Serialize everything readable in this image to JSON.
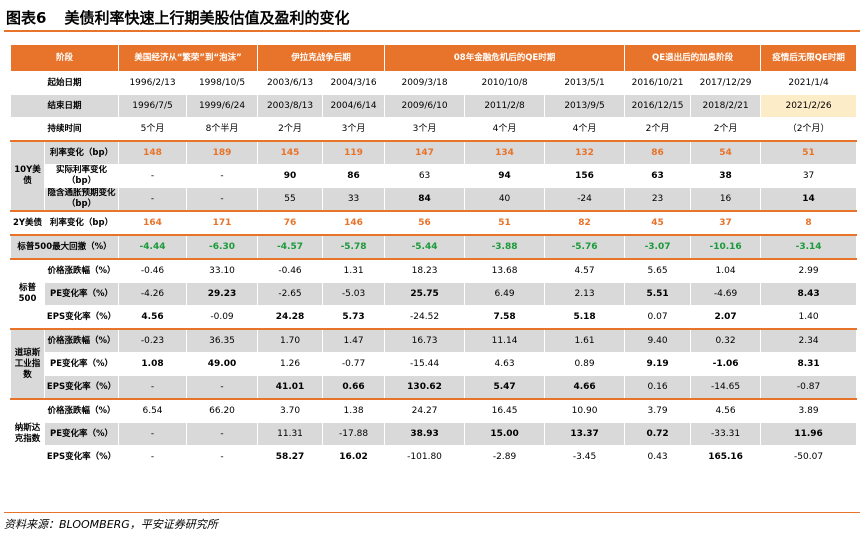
{
  "title": {
    "label": "图表6",
    "text": "美债利率快速上行期美股估值及盈利的变化"
  },
  "header": {
    "stage": "阶段",
    "groups": [
      "美国经济从“繁荣”到“泡沫”",
      "伊拉克战争后期",
      "08年金融危机后的QE时期",
      "QE退出后的加息阶段",
      "疫情后无限QE时期"
    ]
  },
  "rows": {
    "start": {
      "label": "起始日期",
      "values": [
        "1996/2/13",
        "1998/10/5",
        "2003/6/13",
        "2004/3/16",
        "2009/3/18",
        "2010/10/8",
        "2013/5/1",
        "2016/10/21",
        "2017/12/29",
        "2021/1/4"
      ]
    },
    "end": {
      "label": "结束日期",
      "values": [
        "1996/7/5",
        "1999/6/24",
        "2003/8/13",
        "2004/6/14",
        "2009/6/10",
        "2011/2/8",
        "2013/9/5",
        "2016/12/15",
        "2018/2/21",
        "2021/2/26"
      ]
    },
    "duration": {
      "label": "持续时间",
      "values": [
        "5个月",
        "8个半月",
        "2个月",
        "3个月",
        "3个月",
        "4个月",
        "4个月",
        "2个月",
        "2个月",
        "（2个月）"
      ]
    }
  },
  "us10y": {
    "group": "10Y美债",
    "rate": {
      "label": "利率变化（bp）",
      "values": [
        "148",
        "189",
        "145",
        "119",
        "147",
        "134",
        "132",
        "86",
        "54",
        "51"
      ]
    },
    "real": {
      "label": "实际利率变化（bp）",
      "values": [
        "-",
        "-",
        "90",
        "86",
        "63",
        "94",
        "156",
        "63",
        "38",
        "37"
      ]
    },
    "infl": {
      "label": "隐含通胀预期变化（bp）",
      "values": [
        "-",
        "-",
        "55",
        "33",
        "84",
        "40",
        "-24",
        "23",
        "16",
        "14"
      ]
    }
  },
  "us2y": {
    "group": "2Y美债",
    "label": "利率变化（bp）",
    "values": [
      "164",
      "171",
      "76",
      "146",
      "56",
      "51",
      "82",
      "45",
      "37",
      "8"
    ]
  },
  "spx_dd": {
    "label": "标普500最大回撤（%）",
    "values": [
      "-4.44",
      "-6.30",
      "-4.57",
      "-5.78",
      "-5.44",
      "-3.88",
      "-5.76",
      "-3.07",
      "-10.16",
      "-3.14"
    ]
  },
  "spx": {
    "group": "标普500",
    "price": {
      "label": "价格涨跌幅（%）",
      "values": [
        "-0.46",
        "33.10",
        "-0.46",
        "1.31",
        "18.23",
        "13.68",
        "4.57",
        "5.65",
        "1.04",
        "2.99"
      ]
    },
    "pe": {
      "label": "PE变化率（%）",
      "values": [
        "-4.26",
        "29.23",
        "-2.65",
        "-5.03",
        "25.75",
        "6.49",
        "2.13",
        "5.51",
        "-4.69",
        "8.43"
      ]
    },
    "eps": {
      "label": "EPS变化率（%）",
      "values": [
        "4.56",
        "-0.09",
        "24.28",
        "5.73",
        "-24.52",
        "7.58",
        "5.18",
        "0.07",
        "2.07",
        "1.40"
      ]
    }
  },
  "dji": {
    "group": "道琼斯工业指数",
    "price": {
      "label": "价格涨跌幅（%）",
      "values": [
        "-0.23",
        "36.35",
        "1.70",
        "1.47",
        "16.73",
        "11.14",
        "1.61",
        "9.40",
        "0.32",
        "2.34"
      ]
    },
    "pe": {
      "label": "PE变化率（%）",
      "values": [
        "1.08",
        "49.00",
        "1.26",
        "-0.77",
        "-15.44",
        "4.63",
        "0.89",
        "9.19",
        "-1.06",
        "8.31"
      ]
    },
    "eps": {
      "label": "EPS变化率（%）",
      "values": [
        "-",
        "-",
        "41.01",
        "0.66",
        "130.62",
        "5.47",
        "4.66",
        "0.16",
        "-14.65",
        "-0.87"
      ]
    }
  },
  "ndx": {
    "group": "纳斯达克指数",
    "price": {
      "label": "价格涨跌幅（%）",
      "values": [
        "6.54",
        "66.20",
        "3.70",
        "1.38",
        "24.27",
        "16.45",
        "10.90",
        "3.79",
        "4.56",
        "3.89"
      ]
    },
    "pe": {
      "label": "PE变化率（%）",
      "values": [
        "-",
        "-",
        "11.31",
        "-17.88",
        "38.93",
        "15.00",
        "13.37",
        "0.72",
        "-33.31",
        "11.96"
      ]
    },
    "eps": {
      "label": "EPS变化率（%）",
      "values": [
        "-",
        "-",
        "58.27",
        "16.02",
        "-101.80",
        "-2.89",
        "-3.45",
        "0.43",
        "165.16",
        "-50.07"
      ]
    }
  },
  "footer": "资料来源：BLOOMBERG，平安证券研究所",
  "colors": {
    "accent": "#e8732a",
    "gray": "#d9d9d9",
    "green": "#1a9a3a",
    "highlight": "#fdecc8"
  }
}
